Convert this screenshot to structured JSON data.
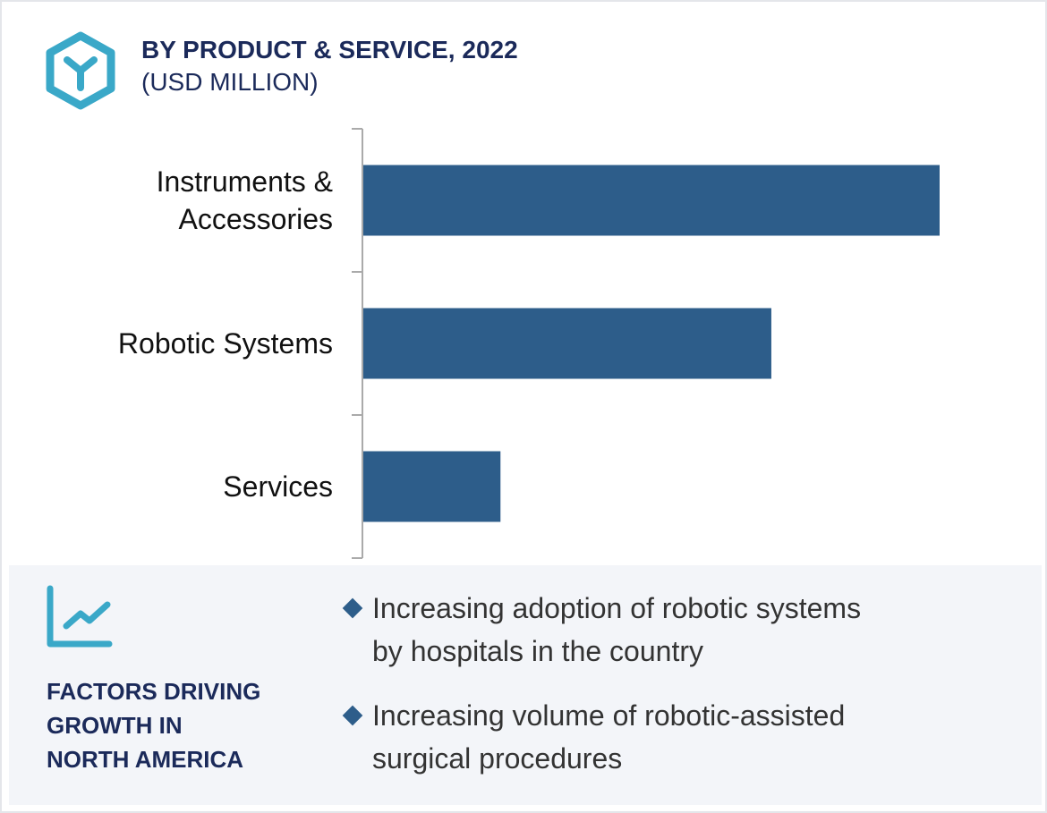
{
  "header": {
    "title": "BY PRODUCT & SERVICE, 2022",
    "subtitle": "(USD MILLION)",
    "icon": "cube-icon"
  },
  "chart_data": {
    "type": "bar",
    "orientation": "horizontal",
    "title": "BY PRODUCT & SERVICE, 2022",
    "ylabel": "(USD MILLION)",
    "categories": [
      "Instruments & Accessories",
      "Robotic Systems",
      "Services"
    ],
    "category_lines": [
      [
        "Instruments &",
        "Accessories"
      ],
      [
        "Robotic Systems"
      ],
      [
        "Services"
      ]
    ],
    "values": [
      100,
      70.8,
      23.8
    ],
    "value_note": "relative bar lengths (no axis values printed)",
    "bar_color": "#2d5d8a",
    "grid": false
  },
  "factors": {
    "icon": "trend-chart-icon",
    "heading_lines": [
      "FACTORS DRIVING",
      "GROWTH IN",
      "NORTH AMERICA"
    ],
    "bullets": [
      [
        "Increasing adoption of robotic systems",
        "by hospitals in the country"
      ],
      [
        "Increasing volume of robotic-assisted",
        "surgical procedures"
      ]
    ]
  },
  "colors": {
    "navy": "#1b2a5a",
    "teal": "#3aa8c8",
    "bar": "#2d5d8a",
    "panel": "#f3f5f9"
  }
}
